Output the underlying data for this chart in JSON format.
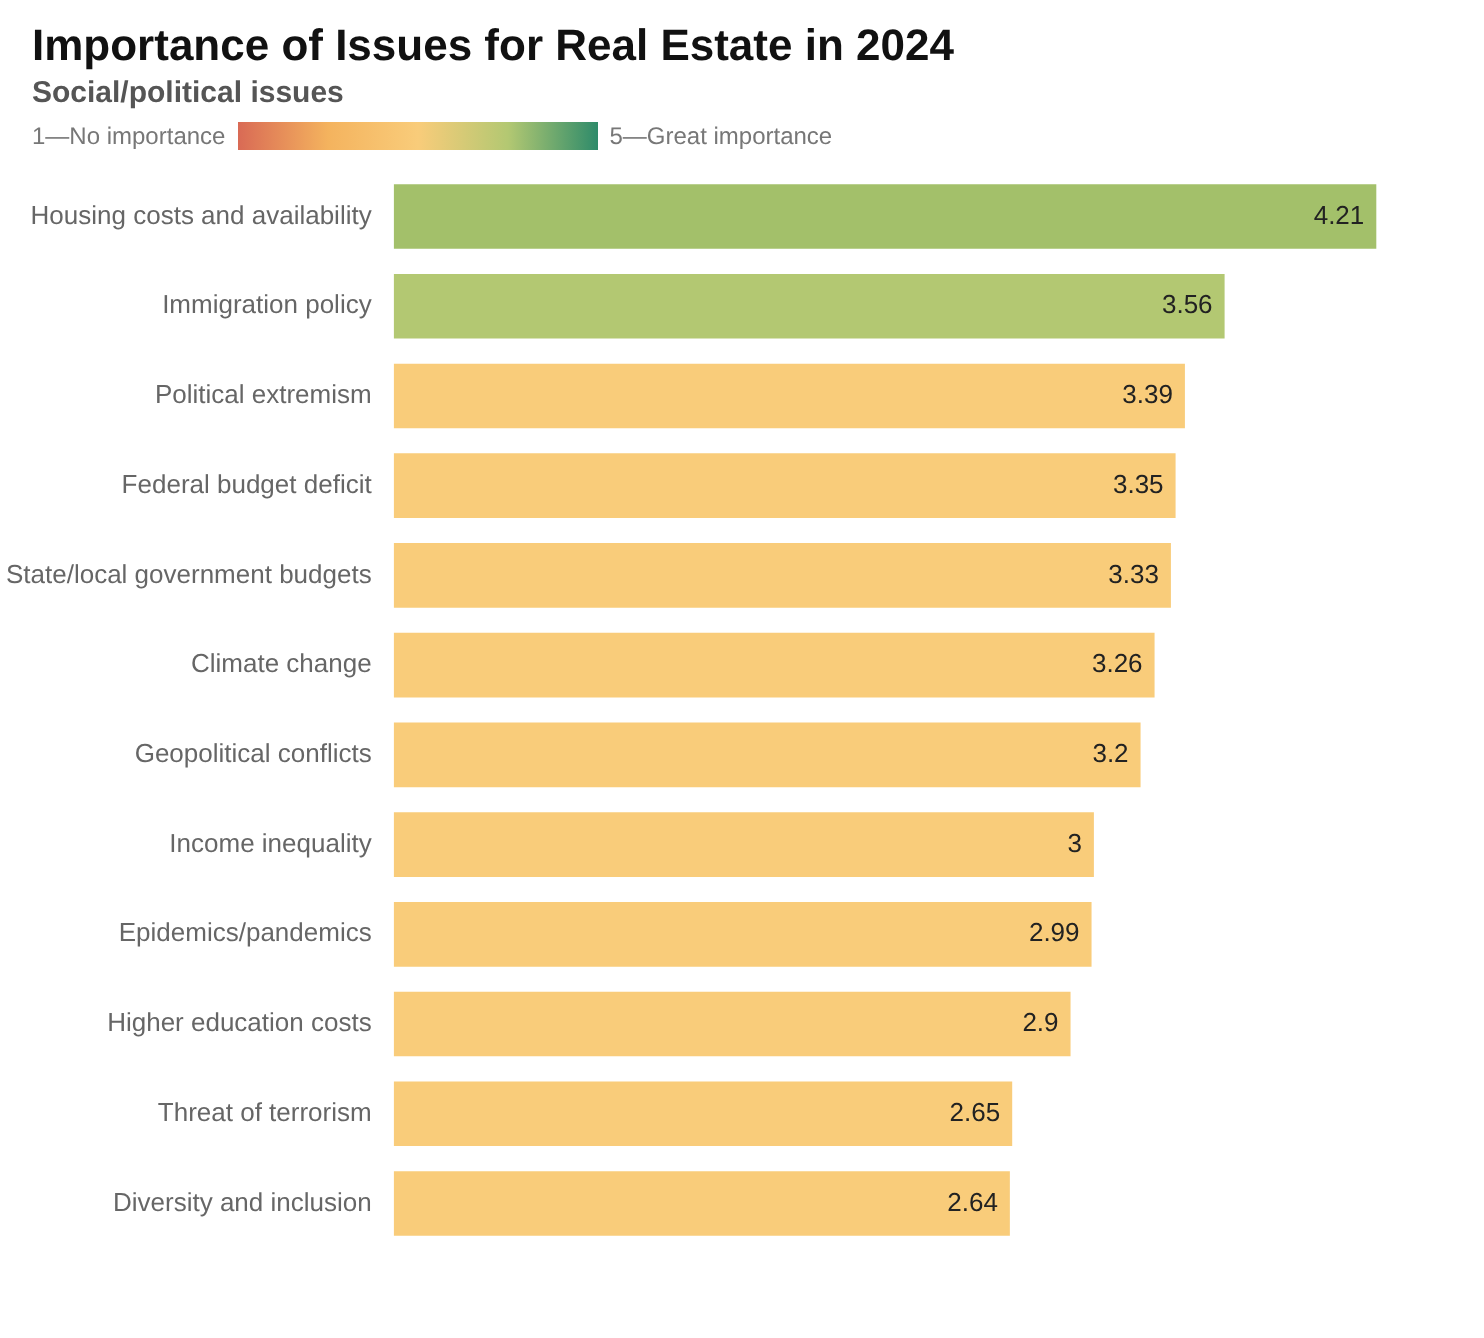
{
  "chart_data": {
    "type": "bar",
    "orientation": "horizontal",
    "title": "Importance of Issues for Real Estate in 2024",
    "subtitle": "Social/political issues",
    "annotations": [
      "1—No importance",
      "5—Great importance"
    ],
    "categories": [
      "Housing costs and availability",
      "Immigration policy",
      "Political extremism",
      "Federal budget deficit",
      "State/local government budgets",
      "Climate change",
      "Geopolitical conflicts",
      "Income inequality",
      "Epidemics/pandemics",
      "Higher education costs",
      "Threat of terrorism",
      "Diversity and inclusion"
    ],
    "values": [
      4.21,
      3.56,
      3.39,
      3.35,
      3.33,
      3.26,
      3.2,
      3,
      2.99,
      2.9,
      2.65,
      2.64
    ],
    "colors": [
      "#a3c06a",
      "#b3c872",
      "#f9cc7a",
      "#f9cc7a",
      "#f9cc7a",
      "#f9cc7a",
      "#f9cc7a",
      "#f9cc7a",
      "#f9cc7a",
      "#f9cc7a",
      "#f9cc7a",
      "#f9cc7a"
    ],
    "data_labels": true,
    "legend": false
  }
}
